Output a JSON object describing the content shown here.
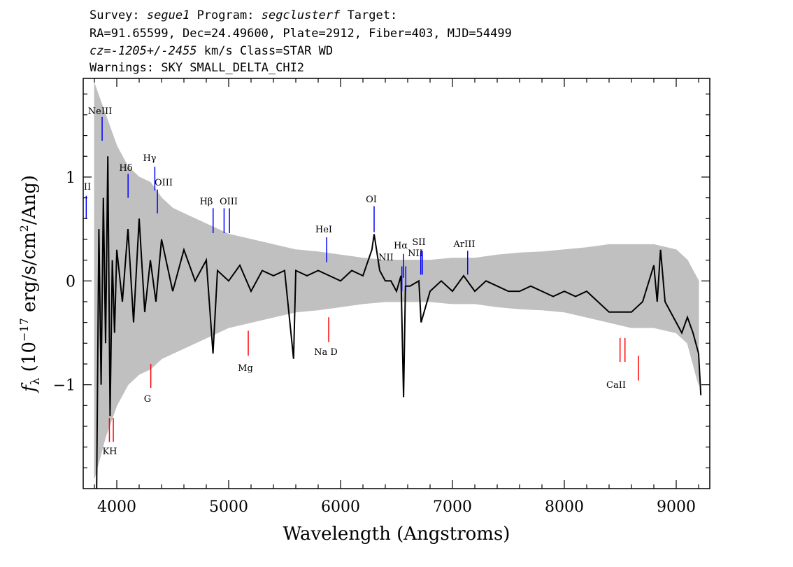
{
  "header": {
    "survey_label": "Survey:",
    "survey": "segue1",
    "program_label": "Program:",
    "program": "segclusterf",
    "target_label": "Target:",
    "line2": "RA=91.65599, Dec=24.49600, Plate=2912, Fiber=403, MJD=54499",
    "cz_label": "cz=",
    "cz_value": "-1205+/-2455",
    "cz_unit": "km/s",
    "class_text": "Class=STAR WD",
    "warnings": "Warnings: SKY SMALL_DELTA_CHI2"
  },
  "chart_data": {
    "type": "line",
    "xlabel": "Wavelength (Angstroms)",
    "ylabel": "f_λ (10^-17 erg/s/cm^2/Ang)",
    "xlim": [
      3700,
      9300
    ],
    "ylim": [
      -2.0,
      1.95
    ],
    "x_ticks": [
      4000,
      5000,
      6000,
      7000,
      8000,
      9000
    ],
    "y_ticks": [
      -1,
      0,
      1
    ],
    "grid": false,
    "series": [
      {
        "role": "error band",
        "color": "#c0c0c0",
        "x": [
          3800,
          3900,
          4000,
          4100,
          4200,
          4300,
          4400,
          4500,
          4600,
          4700,
          4800,
          4900,
          5000,
          5200,
          5400,
          5600,
          5800,
          6000,
          6200,
          6400,
          6600,
          6800,
          7000,
          7200,
          7400,
          7600,
          7800,
          8000,
          8200,
          8400,
          8600,
          8800,
          9000,
          9100,
          9200
        ],
        "y_low": [
          -1.9,
          -1.5,
          -1.2,
          -1.0,
          -0.9,
          -0.85,
          -0.75,
          -0.7,
          -0.65,
          -0.6,
          -0.55,
          -0.5,
          -0.45,
          -0.4,
          -0.35,
          -0.3,
          -0.28,
          -0.25,
          -0.22,
          -0.2,
          -0.2,
          -0.2,
          -0.22,
          -0.22,
          -0.25,
          -0.27,
          -0.28,
          -0.3,
          -0.35,
          -0.4,
          -0.45,
          -0.45,
          -0.5,
          -0.6,
          -1.0
        ],
        "y_high": [
          1.9,
          1.6,
          1.3,
          1.1,
          1.0,
          0.95,
          0.8,
          0.7,
          0.65,
          0.6,
          0.55,
          0.5,
          0.45,
          0.4,
          0.35,
          0.3,
          0.28,
          0.25,
          0.22,
          0.2,
          0.2,
          0.2,
          0.22,
          0.22,
          0.25,
          0.27,
          0.28,
          0.3,
          0.32,
          0.35,
          0.35,
          0.35,
          0.3,
          0.2,
          0.0
        ]
      },
      {
        "role": "flux",
        "color": "#000000",
        "x": [
          3820,
          3840,
          3860,
          3880,
          3900,
          3920,
          3940,
          3960,
          3980,
          4000,
          4050,
          4100,
          4150,
          4200,
          4250,
          4300,
          4350,
          4400,
          4500,
          4600,
          4700,
          4800,
          4860,
          4900,
          5000,
          5100,
          5200,
          5300,
          5400,
          5500,
          5580,
          5600,
          5700,
          5800,
          5900,
          6000,
          6100,
          6200,
          6280,
          6300,
          6350,
          6400,
          6450,
          6500,
          6540,
          6563,
          6580,
          6620,
          6700,
          6720,
          6800,
          6900,
          7000,
          7100,
          7200,
          7300,
          7400,
          7500,
          7600,
          7700,
          7800,
          7900,
          8000,
          8100,
          8200,
          8300,
          8400,
          8500,
          8600,
          8700,
          8800,
          8830,
          8860,
          8900,
          9000,
          9050,
          9100,
          9150,
          9200,
          9220
        ],
        "y": [
          -2.0,
          0.5,
          -1.0,
          0.8,
          -0.6,
          1.2,
          -1.3,
          0.2,
          -0.5,
          0.3,
          -0.2,
          0.5,
          -0.4,
          0.6,
          -0.3,
          0.2,
          -0.2,
          0.4,
          -0.1,
          0.3,
          0.0,
          0.2,
          -0.7,
          0.1,
          0.0,
          0.15,
          -0.1,
          0.1,
          0.05,
          0.1,
          -0.75,
          0.1,
          0.05,
          0.1,
          0.05,
          0.0,
          0.1,
          0.05,
          0.3,
          0.45,
          0.1,
          0.0,
          0.0,
          -0.1,
          0.05,
          -1.12,
          -0.05,
          -0.05,
          0.0,
          -0.4,
          -0.1,
          0.0,
          -0.1,
          0.05,
          -0.1,
          0.0,
          -0.05,
          -0.1,
          -0.1,
          -0.05,
          -0.1,
          -0.15,
          -0.1,
          -0.15,
          -0.1,
          -0.2,
          -0.3,
          -0.3,
          -0.3,
          -0.2,
          0.15,
          -0.2,
          0.3,
          -0.2,
          -0.4,
          -0.5,
          -0.35,
          -0.5,
          -0.7,
          -1.1
        ]
      }
    ],
    "emission_lines": [
      {
        "label": "II",
        "x": 3727,
        "y_top": 0.82,
        "y_bottom": 0.6
      },
      {
        "label": "NeIII",
        "x": 3869,
        "y_top": 1.58,
        "y_bottom": 1.35
      },
      {
        "label": "Hδ",
        "x": 4101,
        "y_top": 1.03,
        "y_bottom": 0.8
      },
      {
        "label": "Hγ",
        "x": 4340,
        "y_top": 1.1,
        "y_bottom": 0.87
      },
      {
        "label": "OIII",
        "x": 4363,
        "y_top": 0.88,
        "y_bottom": 0.65
      },
      {
        "label": "Hβ",
        "x": 4861,
        "y_top": 0.7,
        "y_bottom": 0.46
      },
      {
        "label": "OIII",
        "x": 4959,
        "y_top": 0.7,
        "y_bottom": 0.46
      },
      {
        "label": "OIII",
        "x": 5007,
        "y_top": 0.7,
        "y_bottom": 0.46
      },
      {
        "label": "HeI",
        "x": 5876,
        "y_top": 0.42,
        "y_bottom": 0.18
      },
      {
        "label": "OI",
        "x": 6300,
        "y_top": 0.72,
        "y_bottom": 0.47
      },
      {
        "label": "NII",
        "x": 6548,
        "y_top": 0.14,
        "y_bottom": -0.1
      },
      {
        "label": "Hα",
        "x": 6563,
        "y_top": 0.26,
        "y_bottom": 0.03
      },
      {
        "label": "NII",
        "x": 6583,
        "y_top": 0.14,
        "y_bottom": -0.1
      },
      {
        "label": "SII",
        "x": 6717,
        "y_top": 0.29,
        "y_bottom": 0.06
      },
      {
        "label": "SII",
        "x": 6731,
        "y_top": 0.29,
        "y_bottom": 0.06
      },
      {
        "label": "ArIII",
        "x": 7136,
        "y_top": 0.29,
        "y_bottom": 0.06
      }
    ],
    "absorption_lines": [
      {
        "label": "K",
        "x": 3934,
        "y_top": -1.32,
        "y_bottom": -1.55
      },
      {
        "label": "H",
        "x": 3969,
        "y_top": -1.32,
        "y_bottom": -1.55
      },
      {
        "label": "G",
        "x": 4304,
        "y_top": -0.8,
        "y_bottom": -1.03
      },
      {
        "label": "Mg",
        "x": 5175,
        "y_top": -0.48,
        "y_bottom": -0.72
      },
      {
        "label": "Na",
        "x": 5894,
        "y_top": -0.35,
        "y_bottom": -0.59
      },
      {
        "label": "CaII",
        "x": 8498,
        "y_top": -0.55,
        "y_bottom": -0.78
      },
      {
        "label": "CaII",
        "x": 8542,
        "y_top": -0.55,
        "y_bottom": -0.78
      },
      {
        "label": "CaII",
        "x": 8662,
        "y_top": -0.72,
        "y_bottom": -0.96
      }
    ],
    "line_label_texts": {
      "II": "II",
      "NeIII": "NeIII",
      "Hdelta": "Hδ",
      "Hgamma": "Hγ",
      "OIII_a": "OIII",
      "Hbeta": "Hβ",
      "OIII_b": "OIII",
      "HeI": "HeI",
      "OI": "OI",
      "NII_a": "NII",
      "Halpha": "Hα",
      "SII": "SII",
      "NII_b": "NII",
      "ArIII": "ArIII",
      "KH": "KH",
      "G": "G",
      "Mg": "Mg",
      "NaD": "Na  D",
      "CaII": "CaII"
    },
    "colors": {
      "emission": "#0000ff",
      "absorption": "#ff0000",
      "flux": "#000000",
      "error": "#c0c0c0"
    }
  }
}
